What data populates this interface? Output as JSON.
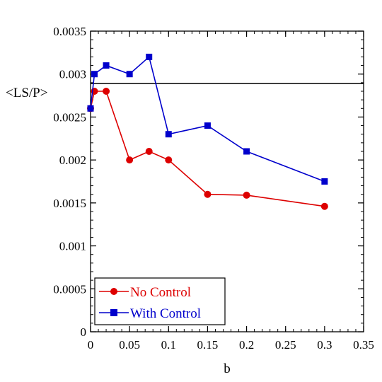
{
  "chart_data": {
    "type": "line",
    "title": "",
    "xlabel": "b",
    "ylabel": "<LS/P>",
    "xlim": [
      0,
      0.35
    ],
    "ylim": [
      0,
      0.0035
    ],
    "x_ticks": [
      "0",
      "0.05",
      "0.1",
      "0.15",
      "0.2",
      "0.25",
      "0.3",
      "0.35"
    ],
    "y_ticks": [
      "0",
      "0.0005",
      "0.001",
      "0.0015",
      "0.002",
      "0.0025",
      "0.003",
      "0.0035"
    ],
    "x_tick_values": [
      0,
      0.05,
      0.1,
      0.15,
      0.2,
      0.25,
      0.3,
      0.35
    ],
    "y_tick_values": [
      0,
      0.0005,
      0.001,
      0.0015,
      0.002,
      0.0025,
      0.003,
      0.0035
    ],
    "grid": false,
    "legend_position": "bottom-left",
    "reference_line": {
      "y": 0.00289
    },
    "series": [
      {
        "name": "No Control",
        "color": "#dd0000",
        "marker": "circle",
        "x": [
          0,
          0.005,
          0.02,
          0.05,
          0.075,
          0.1,
          0.15,
          0.2,
          0.3
        ],
        "y": [
          0.0026,
          0.0028,
          0.0028,
          0.002,
          0.0021,
          0.002,
          0.0016,
          0.00159,
          0.00146
        ]
      },
      {
        "name": "With Control",
        "color": "#0000cc",
        "marker": "square",
        "x": [
          0,
          0.005,
          0.02,
          0.05,
          0.075,
          0.1,
          0.15,
          0.2,
          0.3
        ],
        "y": [
          0.0026,
          0.003,
          0.0031,
          0.003,
          0.0032,
          0.0023,
          0.0024,
          0.0021,
          0.00175
        ]
      }
    ]
  }
}
